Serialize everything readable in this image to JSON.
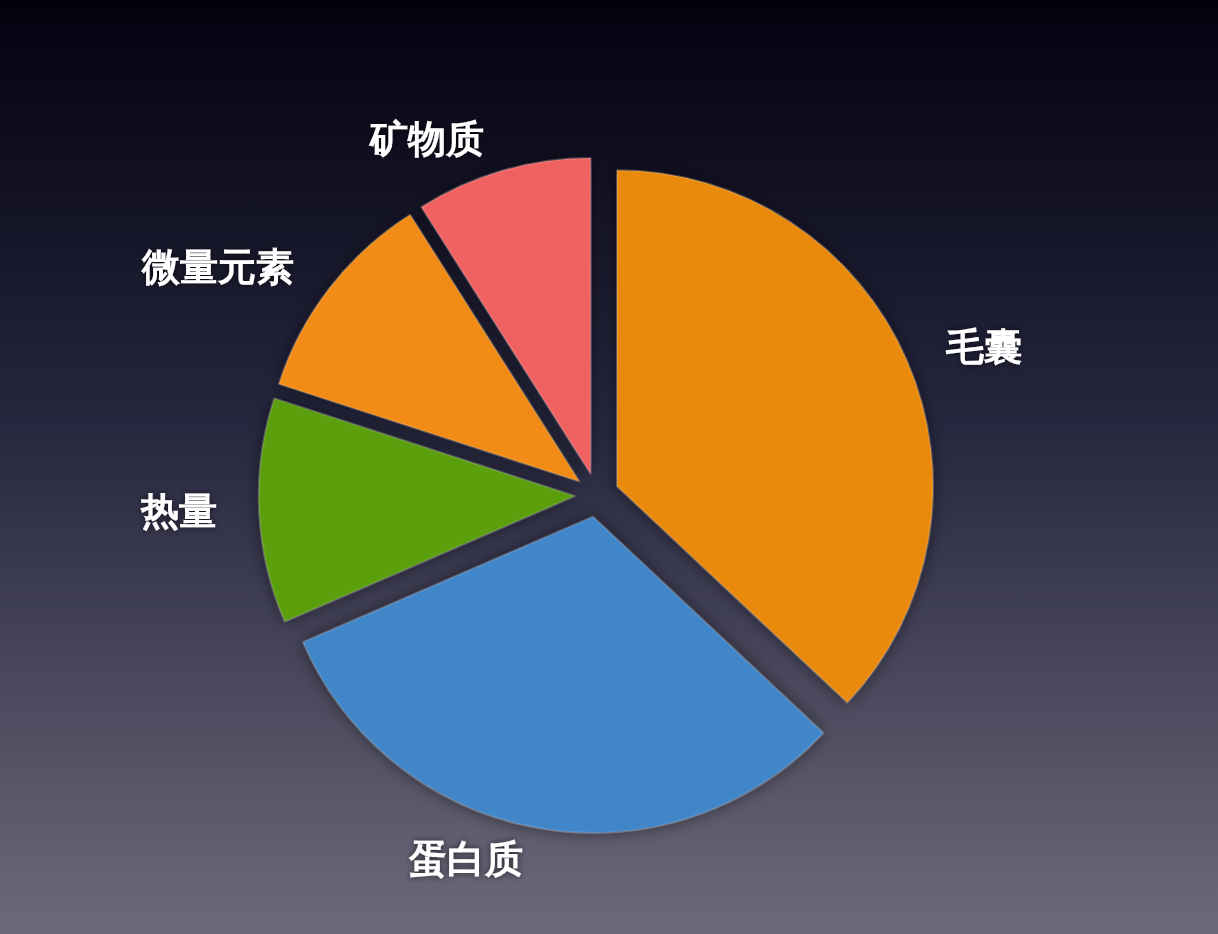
{
  "chart_data": {
    "type": "pie",
    "categories": [
      "毛囊",
      "蛋白质",
      "热量",
      "微量元素",
      "矿物质"
    ],
    "values": [
      37,
      31.5,
      11.5,
      11,
      9
    ],
    "colors": [
      "#ea8a0c",
      "#3f86c9",
      "#5b9f10",
      "#f28c14",
      "#f06262"
    ]
  }
}
